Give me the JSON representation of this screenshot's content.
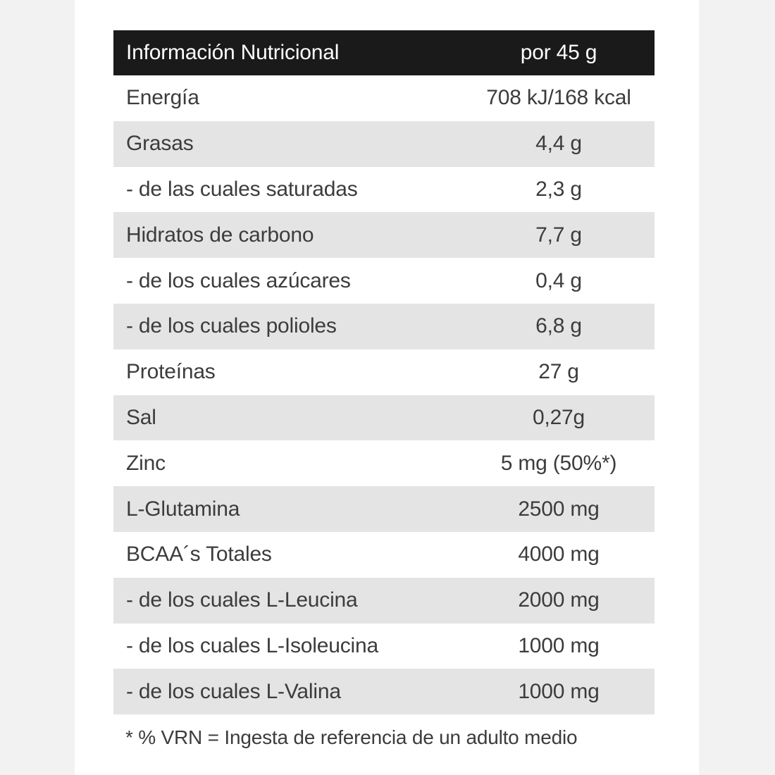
{
  "table": {
    "header": {
      "name": "Información Nutricional",
      "value": "por 45 g"
    },
    "rows": [
      {
        "name": "Energía",
        "value": "708 kJ/168 kcal"
      },
      {
        "name": "Grasas",
        "value": "4,4 g"
      },
      {
        "name": "- de las cuales saturadas",
        "value": "2,3 g"
      },
      {
        "name": "Hidratos de carbono",
        "value": "7,7 g"
      },
      {
        "name": "- de los cuales azúcares",
        "value": "0,4 g"
      },
      {
        "name": "- de los cuales polioles",
        "value": "6,8 g"
      },
      {
        "name": "Proteínas",
        "value": "27 g"
      },
      {
        "name": "Sal",
        "value": "0,27g"
      },
      {
        "name": "Zinc",
        "value": "5 mg (50%*)"
      },
      {
        "name": "L-Glutamina",
        "value": "2500 mg"
      },
      {
        "name": "BCAA´s Totales",
        "value": "4000 mg"
      },
      {
        "name": "- de los cuales L-Leucina",
        "value": "2000 mg"
      },
      {
        "name": "- de los cuales L-Isoleucina",
        "value": "1000 mg"
      },
      {
        "name": "- de los cuales L-Valina",
        "value": "1000 mg"
      }
    ]
  },
  "footnote": "* % VRN = Ingesta de referencia de un adulto medio",
  "colors": {
    "header_background": "#1b1a1b",
    "shaded_row": "#e4e4e5",
    "text": "#3c3c3c"
  }
}
